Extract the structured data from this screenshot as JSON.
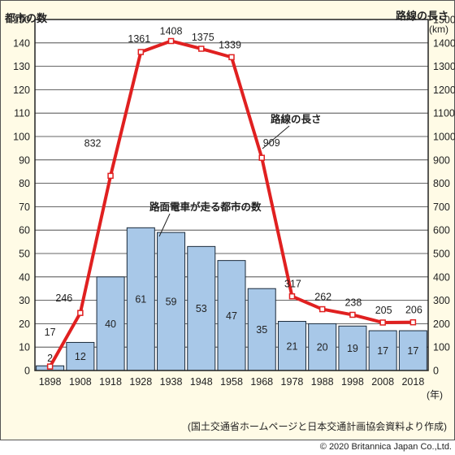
{
  "chart_data": {
    "type": "bar+line",
    "categories": [
      "1898",
      "1908",
      "1918",
      "1928",
      "1938",
      "1948",
      "1958",
      "1968",
      "1978",
      "1988",
      "1998",
      "2008",
      "2018"
    ],
    "series": [
      {
        "name": "路面電車が走る都市の数",
        "type": "bar",
        "axis": "left",
        "values": [
          2,
          12,
          40,
          61,
          59,
          53,
          47,
          35,
          21,
          20,
          19,
          17,
          17
        ]
      },
      {
        "name": "路線の長さ",
        "type": "line",
        "axis": "right",
        "values": [
          17,
          246,
          832,
          1361,
          1408,
          1375,
          1339,
          909,
          317,
          262,
          238,
          205,
          206
        ]
      }
    ],
    "ylabel_left": "都市の数",
    "ylabel_right": "路線の長さ",
    "yunit_right": "(km)",
    "xunit": "(年)",
    "ylim_left": [
      0,
      150
    ],
    "ylim_right": [
      0,
      1500
    ],
    "yticks_left": [
      0,
      10,
      20,
      30,
      40,
      50,
      60,
      70,
      80,
      90,
      100,
      110,
      120,
      130,
      140,
      150
    ],
    "yticks_right": [
      0,
      100,
      200,
      300,
      400,
      500,
      600,
      700,
      800,
      900,
      1000,
      1100,
      1200,
      1300,
      1400,
      1500
    ],
    "grid": true,
    "colors": {
      "bar": "#a8c8e8",
      "bar_stroke": "#1a2a3a",
      "line": "#e02020",
      "marker_fill": "#ffffff",
      "grid": "#333333",
      "plot_bg": "#ffffff",
      "frame_bg": "#fffbe6"
    },
    "source_note": "(国土交通省ホームページと日本交通計画協会資料より作成)"
  },
  "copyright": "© 2020 Britannica Japan Co.,Ltd."
}
